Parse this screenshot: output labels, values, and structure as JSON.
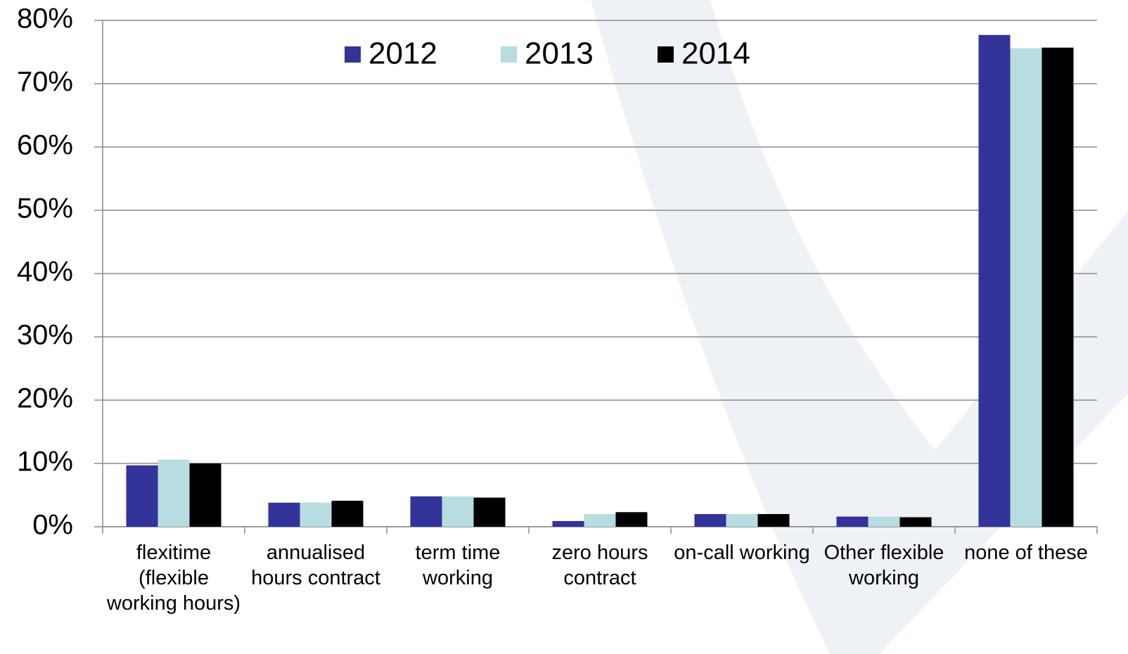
{
  "chart_data": {
    "type": "bar",
    "categories": [
      "flexitime (flexible working hours)",
      "annualised hours contract",
      "term time working",
      "zero hours contract",
      "on-call working",
      "Other flexible working",
      "none of these"
    ],
    "series": [
      {
        "name": "2012",
        "color": "#333399",
        "values": [
          9.7,
          3.8,
          4.8,
          0.9,
          2.0,
          1.6,
          77.7
        ]
      },
      {
        "name": "2013",
        "color": "#b7dde0",
        "values": [
          10.6,
          3.8,
          4.8,
          2.0,
          2.0,
          1.6,
          75.6
        ]
      },
      {
        "name": "2014",
        "color": "#000000",
        "values": [
          10.0,
          4.1,
          4.6,
          2.3,
          2.0,
          1.5,
          75.7
        ]
      }
    ],
    "ylim": [
      0,
      80
    ],
    "yticks": [
      {
        "value": 0,
        "label": "0%"
      },
      {
        "value": 10,
        "label": "10%"
      },
      {
        "value": 20,
        "label": "20%"
      },
      {
        "value": 30,
        "label": "30%"
      },
      {
        "value": 40,
        "label": "40%"
      },
      {
        "value": 50,
        "label": "50%"
      },
      {
        "value": 60,
        "label": "60%"
      },
      {
        "value": 70,
        "label": "70%"
      },
      {
        "value": 80,
        "label": "80%"
      }
    ],
    "grid": true,
    "legend": "top"
  }
}
